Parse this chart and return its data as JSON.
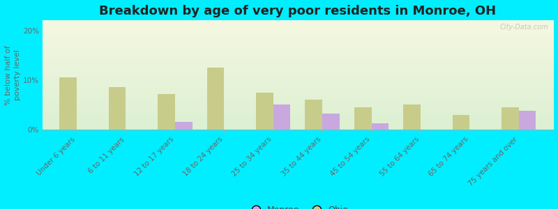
{
  "title": "Breakdown by age of very poor residents in Monroe, OH",
  "ylabel": "% below half of\npoverty level",
  "categories": [
    "Under 6 years",
    "6 to 11 years",
    "12 to 17 years",
    "18 to 24 years",
    "25 to 34 years",
    "35 to 44 years",
    "45 to 54 years",
    "55 to 64 years",
    "65 to 74 years",
    "75 years and over"
  ],
  "monroe_values": [
    0,
    0,
    1.5,
    0,
    5.0,
    3.2,
    1.2,
    0,
    0,
    3.8
  ],
  "ohio_values": [
    10.5,
    8.5,
    7.2,
    12.5,
    7.5,
    6.0,
    4.5,
    5.0,
    3.0,
    4.5
  ],
  "monroe_color": "#c9a8e0",
  "ohio_color": "#c8cc8a",
  "background_outer": "#00eeff",
  "background_plot_top": "#f0f5e0",
  "background_plot_bottom": "#dff0d8",
  "ylim": [
    0,
    22
  ],
  "yticks": [
    0,
    10,
    20
  ],
  "bar_width": 0.35,
  "title_fontsize": 13,
  "axis_fontsize": 8,
  "tick_fontsize": 7.5,
  "watermark": "City-Data.com"
}
